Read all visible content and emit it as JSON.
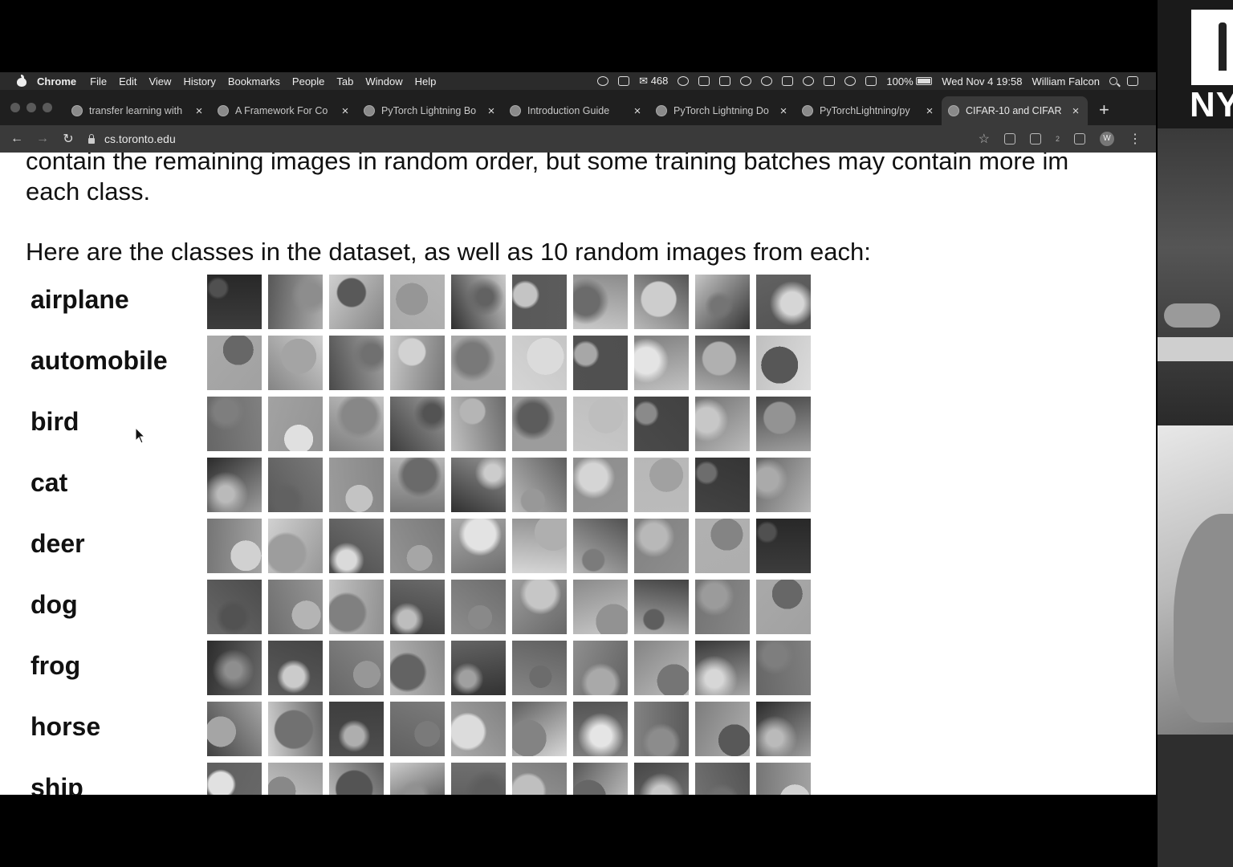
{
  "menubar": {
    "app": "Chrome",
    "menus": [
      "File",
      "Edit",
      "View",
      "History",
      "Bookmarks",
      "People",
      "Tab",
      "Window",
      "Help"
    ],
    "mail_count": "468",
    "battery": "100%",
    "clock": "Wed Nov 4  19:58",
    "user": "William Falcon"
  },
  "tabs": [
    {
      "title": "transfer learning with",
      "icon": "cc-icon"
    },
    {
      "title": "A Framework For Co",
      "icon": "doc-icon"
    },
    {
      "title": "PyTorch Lightning Bo",
      "icon": "pytorch-icon"
    },
    {
      "title": "Introduction Guide",
      "icon": "lightning-icon"
    },
    {
      "title": "PyTorch Lightning Do",
      "icon": "lightning-icon"
    },
    {
      "title": "PyTorchLightning/py",
      "icon": "github-icon"
    },
    {
      "title": "CIFAR-10 and CIFAR",
      "icon": "toronto-icon",
      "active": true
    }
  ],
  "toolbar": {
    "url": "cs.toronto.edu",
    "profile_initial": "W",
    "extension_badge": "2"
  },
  "page": {
    "para1_line1": "contain the remaining images in random order, but some training batches may contain more im",
    "para1_line2": "each class.",
    "para2": "Here are the classes in the dataset, as well as 10 random images from each:",
    "classes": [
      "airplane",
      "automobile",
      "bird",
      "cat",
      "deer",
      "dog",
      "frog",
      "horse",
      "ship"
    ],
    "images_per_class": 10
  },
  "overlay": {
    "logo_text": "NY"
  }
}
